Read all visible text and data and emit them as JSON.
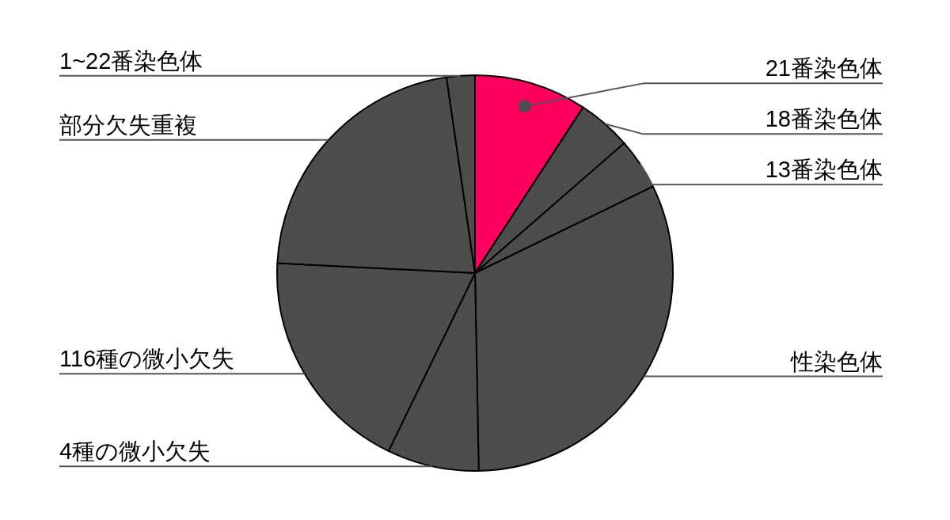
{
  "chart_data": {
    "type": "pie",
    "categories": [
      "21番染色体",
      "18番染色体",
      "13番染色体",
      "性染色体",
      "4種の微小欠失",
      "116種の微小欠失",
      "部分欠失重複",
      "1~22番染色体"
    ],
    "values": [
      9.2,
      4.4,
      4.2,
      31.9,
      7.5,
      18.6,
      21.9,
      2.3
    ],
    "colors": [
      "#ff0060",
      "#4d4d4d",
      "#4d4d4d",
      "#4d4d4d",
      "#4d4d4d",
      "#4d4d4d",
      "#4d4d4d",
      "#4d4d4d"
    ]
  }
}
